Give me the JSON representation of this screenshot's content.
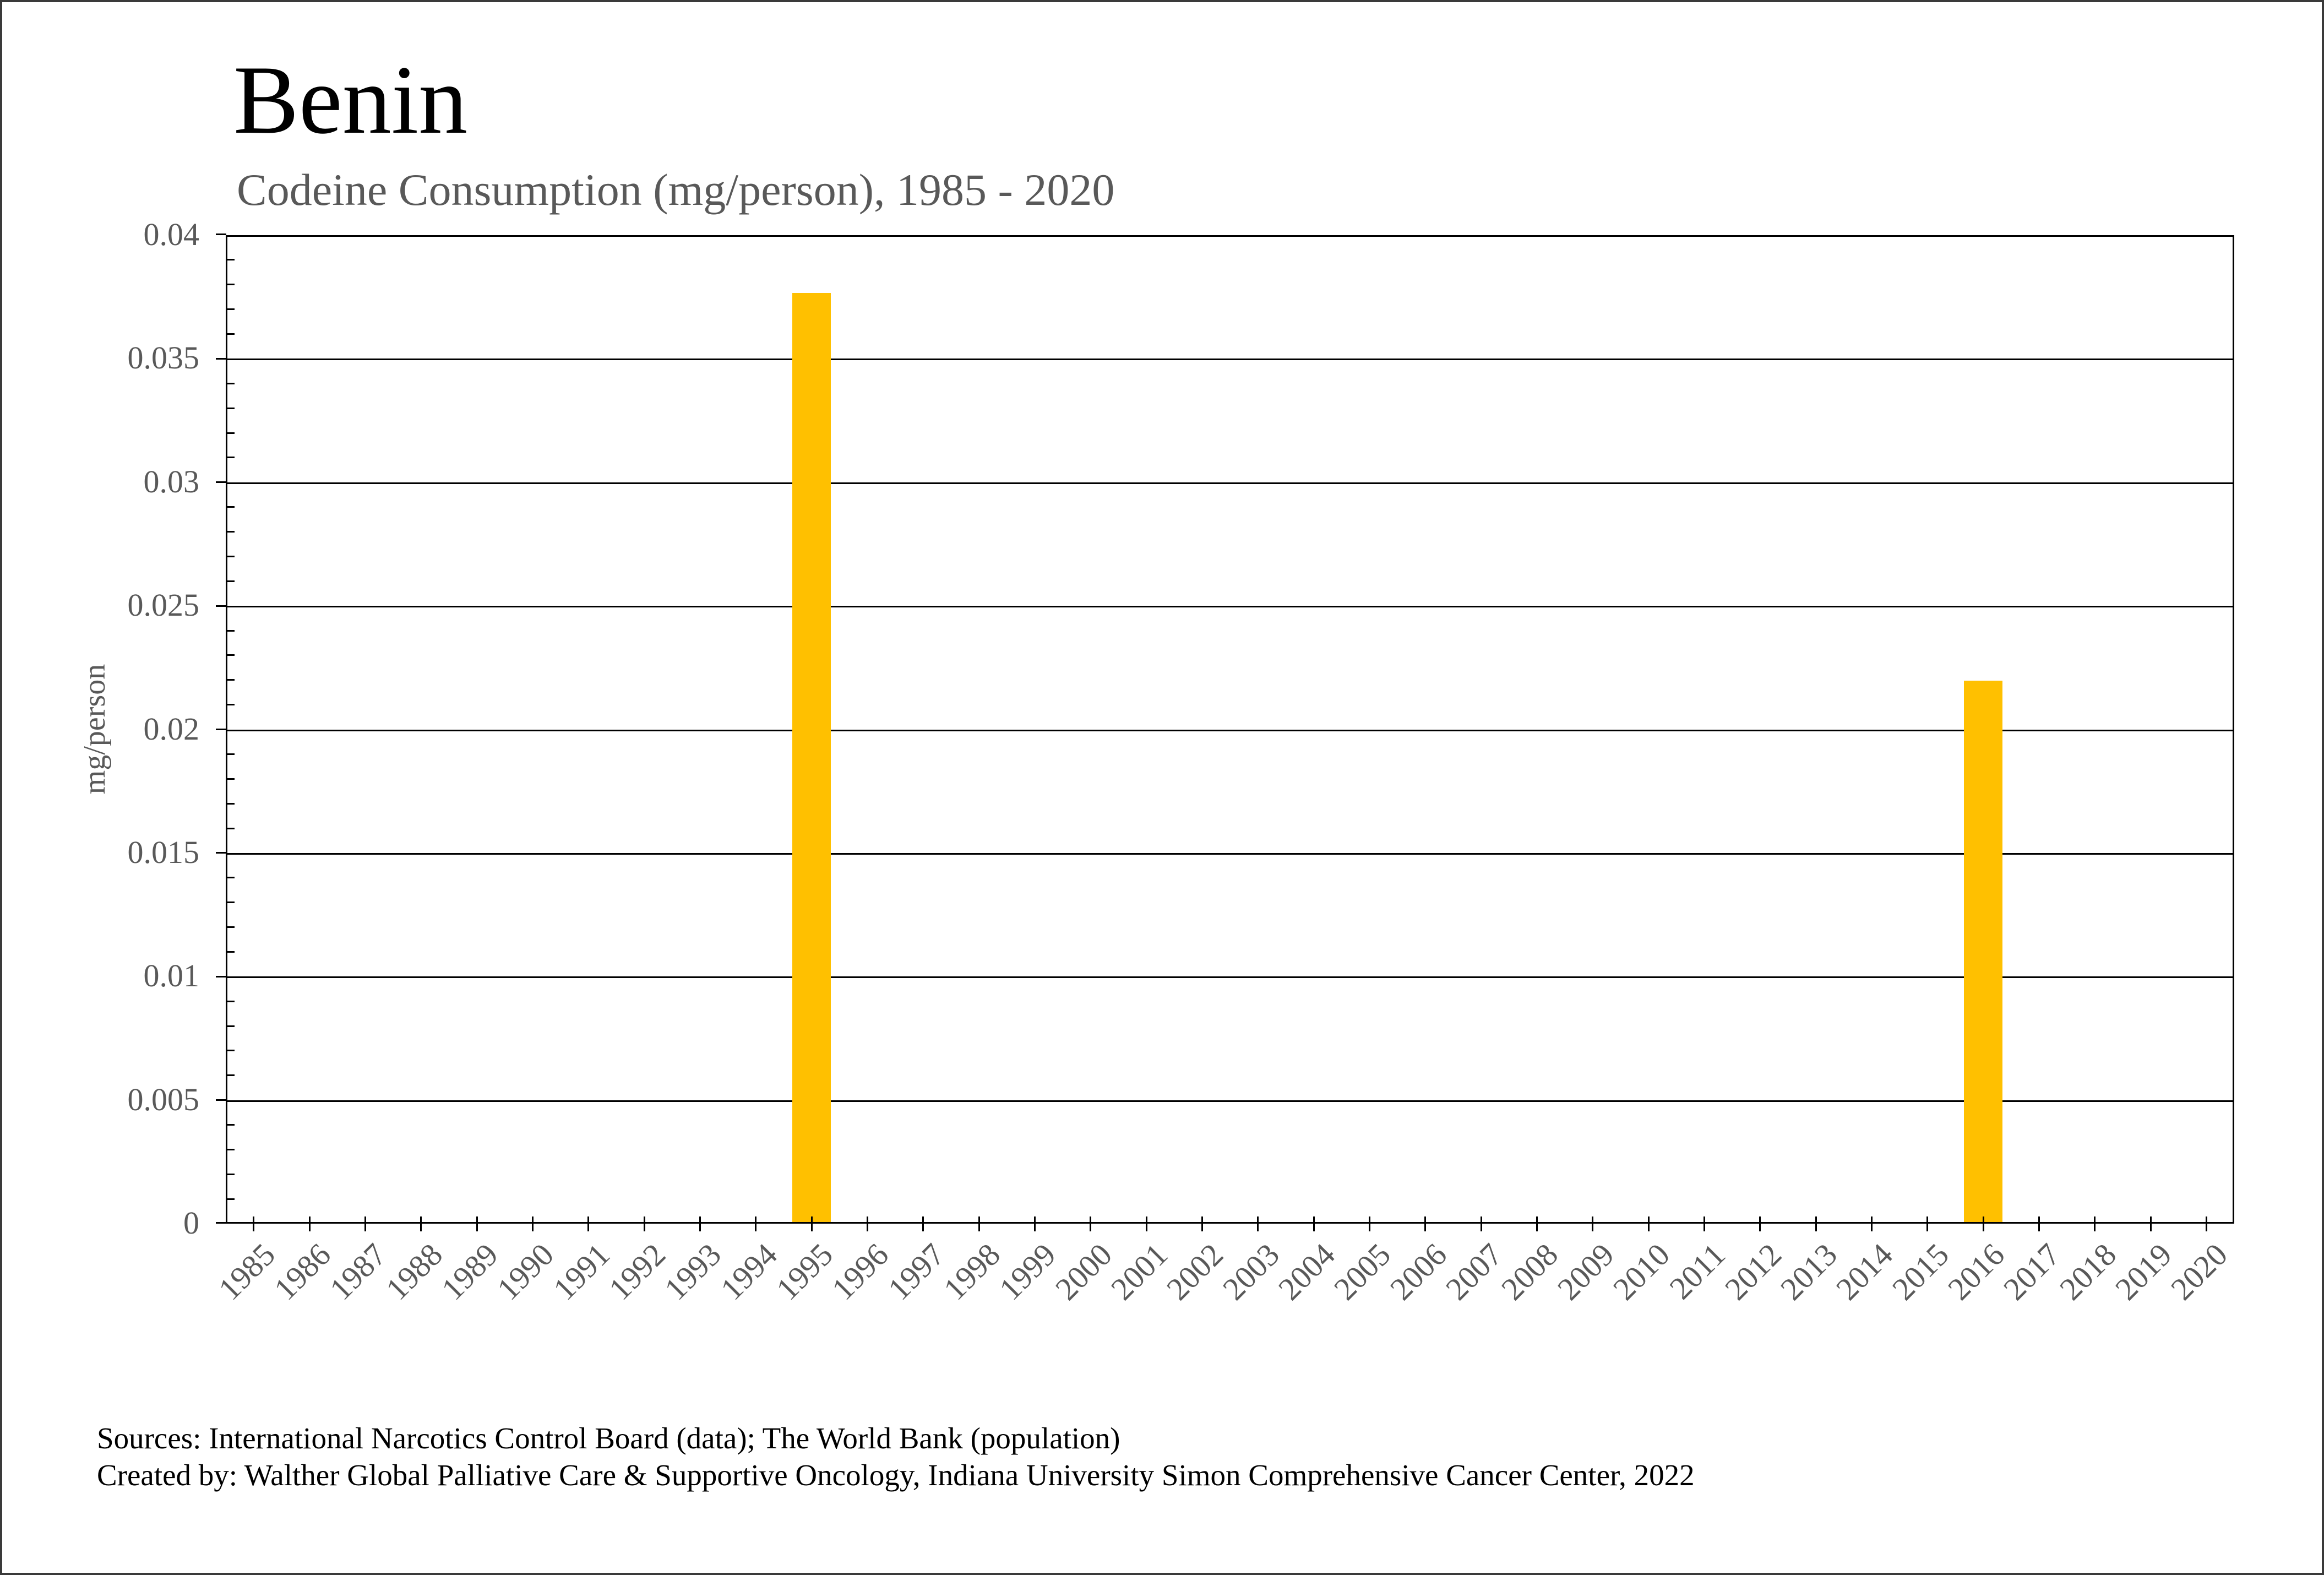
{
  "title": "Benin",
  "subtitle": "Codeine Consumption (mg/person), 1985 - 2020",
  "y_axis_label": "mg/person",
  "footer": {
    "line1": "Sources: International Narcotics Control Board (data); The World Bank (population)",
    "line2": "Created by: Walther Global Palliative Care & Supportive Oncology, Indiana University Simon Comprehensive Cancer Center, 2022"
  },
  "chart_data": {
    "type": "bar",
    "title": "Benin",
    "subtitle": "Codeine Consumption (mg/person), 1985 - 2020",
    "xlabel": "",
    "ylabel": "mg/person",
    "ylim": [
      0,
      0.04
    ],
    "ytick_step": 0.005,
    "ytick_labels": [
      "0",
      "0.005",
      "0.01",
      "0.015",
      "0.02",
      "0.025",
      "0.03",
      "0.035",
      "0.04"
    ],
    "minor_ytick_step": 0.001,
    "grid": "horizontal-major",
    "legend_position": "none",
    "bar_color": "#FFC000",
    "axis_color": "#000000",
    "tick_label_color": "#595959",
    "categories": [
      1985,
      1986,
      1987,
      1988,
      1989,
      1990,
      1991,
      1992,
      1993,
      1994,
      1995,
      1996,
      1997,
      1998,
      1999,
      2000,
      2001,
      2002,
      2003,
      2004,
      2005,
      2006,
      2007,
      2008,
      2009,
      2010,
      2011,
      2012,
      2013,
      2014,
      2015,
      2016,
      2017,
      2018,
      2019,
      2020
    ],
    "values": [
      0,
      0,
      0,
      0,
      0,
      0,
      0,
      0,
      0,
      0,
      0.0376,
      0,
      0,
      0,
      0,
      0,
      0,
      0,
      0,
      0,
      0,
      0,
      0,
      0,
      0,
      0,
      0,
      0,
      0,
      0,
      0,
      0.0219,
      0,
      0,
      0,
      0
    ]
  }
}
